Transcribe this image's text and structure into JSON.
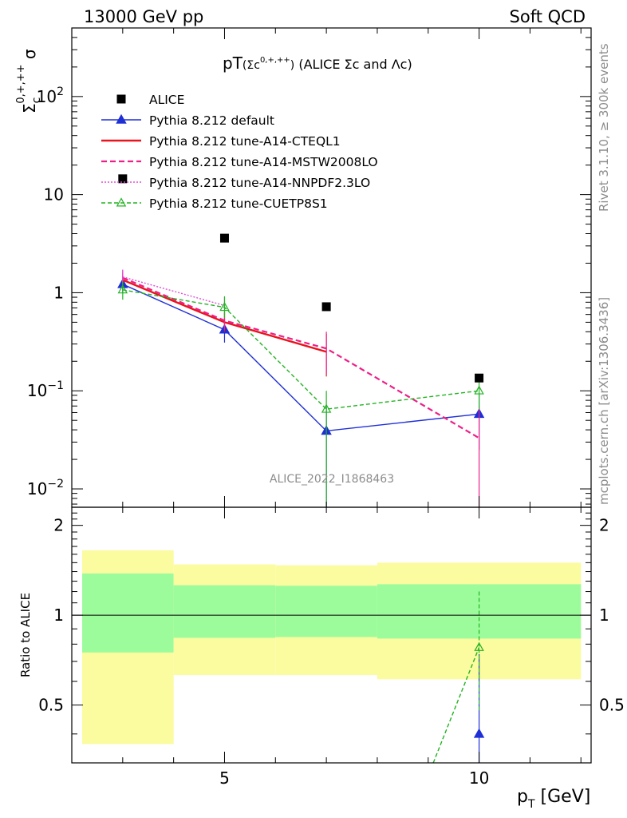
{
  "header": {
    "left": "13000 GeV pp",
    "right": "Soft QCD"
  },
  "side_labels": {
    "rivet": "Rivet 3.1.10, ≥ 300k events",
    "mcplots": "mcplots.cern.ch [arXiv:1306.3436]"
  },
  "plot_title": {
    "main": "pT",
    "paren_open": "(Σc",
    "paren_sup": "0,+,++",
    "paren_close": ")",
    "rest": " (ALICE Σc and Λc)"
  },
  "watermark": "ALICE_2022_I1868463",
  "y_axis_label": {
    "base": "Σ",
    "sub": "c",
    "sup": "0,+,++",
    "tail": " σ"
  },
  "x_axis_label": {
    "p": "p",
    "sub": "T",
    "unit": " [GeV]"
  },
  "ratio_axis_label": "Ratio to ALICE",
  "main_ticks": {
    "y": [
      {
        "v": 0.01,
        "base": "10",
        "exp": "−2"
      },
      {
        "v": 0.1,
        "base": "10",
        "exp": "−1"
      },
      {
        "v": 1,
        "base": "1",
        "exp": ""
      },
      {
        "v": 10,
        "base": "10",
        "exp": ""
      },
      {
        "v": 100,
        "base": "10",
        "exp": "2"
      }
    ]
  },
  "ratio_ticks": {
    "y": [
      {
        "v": 0.5,
        "label": "0.5"
      },
      {
        "v": 1,
        "label": "1"
      },
      {
        "v": 2,
        "label": "2"
      }
    ]
  },
  "x_ticks": [
    {
      "v": 5,
      "label": "5"
    },
    {
      "v": 10,
      "label": "10"
    }
  ],
  "legend": [
    {
      "key": "alice",
      "label": "ALICE"
    },
    {
      "key": "default",
      "label": "Pythia 8.212 default"
    },
    {
      "key": "cteql1",
      "label": "Pythia 8.212 tune-A14-CTEQL1"
    },
    {
      "key": "mstw",
      "label": "Pythia 8.212 tune-A14-MSTW2008LO"
    },
    {
      "key": "nnpdf",
      "label": "Pythia 8.212 tune-A14-NNPDF2.3LO"
    },
    {
      "key": "cuetp",
      "label": "Pythia 8.212 tune-CUETP8S1"
    }
  ],
  "chart_data": {
    "type": "line",
    "xlabel": "pT [GeV]",
    "ylabel": "Σc(0,+,++) σ",
    "x_scale": "linear",
    "y_scale": "log",
    "xlim": [
      2,
      12.2
    ],
    "ylim": [
      0.0065,
      500
    ],
    "ratio_ylim": [
      0.32,
      2.3
    ],
    "grid": false,
    "legend_position": "top-left",
    "reference": {
      "name": "ALICE",
      "color": "#000000",
      "points": [
        {
          "x": 3,
          "y": 14.5
        },
        {
          "x": 5,
          "y": 3.6
        },
        {
          "x": 7,
          "y": 0.72
        },
        {
          "x": 10,
          "y": 0.135
        }
      ]
    },
    "ratio_bands": [
      {
        "x0": 2,
        "x1": 4,
        "yellow": [
          0.37,
          1.65
        ],
        "green": [
          0.75,
          1.38
        ]
      },
      {
        "x0": 4,
        "x1": 6,
        "yellow": [
          0.63,
          1.48
        ],
        "green": [
          0.84,
          1.26
        ]
      },
      {
        "x0": 6,
        "x1": 8,
        "yellow": [
          0.63,
          1.47
        ],
        "green": [
          0.845,
          1.255
        ]
      },
      {
        "x0": 8,
        "x1": 12,
        "yellow": [
          0.61,
          1.5
        ],
        "green": [
          0.835,
          1.27
        ]
      }
    ],
    "series": [
      {
        "name": "Pythia 8.212 default",
        "color": "#1f2fd6",
        "dash": "",
        "marker": "triangle-filled",
        "points": [
          {
            "x": 3,
            "y": 1.22,
            "lo": 1.0,
            "hi": 1.45
          },
          {
            "x": 5,
            "y": 0.42,
            "lo": 0.31,
            "hi": 0.55
          },
          {
            "x": 7,
            "y": 0.039,
            "lo": 0.0065,
            "hi": 0.07
          },
          {
            "x": 10,
            "y": 0.058,
            "lo": 0.025,
            "hi": 0.095
          }
        ],
        "ratio": [
          {
            "x": 10,
            "y": 0.4,
            "lo": 0.32,
            "hi": 0.74
          }
        ]
      },
      {
        "name": "Pythia 8.212 tune-A14-CTEQL1",
        "color": "#e8141e",
        "dash": "",
        "marker": "none",
        "points": [
          {
            "x": 3,
            "y": 1.35,
            "lo": 1.15,
            "hi": 1.6
          },
          {
            "x": 5,
            "y": 0.5,
            "lo": 0.4,
            "hi": 0.62
          },
          {
            "x": 7,
            "y": 0.25,
            "lo": 0.14,
            "hi": 0.38
          }
        ],
        "ratio": []
      },
      {
        "name": "Pythia 8.212 tune-A14-MSTW2008LO",
        "color": "#ee1f87",
        "dash": "7,4",
        "marker": "none",
        "points": [
          {
            "x": 3,
            "y": 1.42,
            "lo": 1.2,
            "hi": 1.7
          },
          {
            "x": 5,
            "y": 0.52,
            "lo": 0.42,
            "hi": 0.65
          },
          {
            "x": 7,
            "y": 0.27,
            "lo": 0.15,
            "hi": 0.4
          },
          {
            "x": 10,
            "y": 0.033,
            "lo": 0.0065,
            "hi": 0.07
          }
        ],
        "ratio": []
      },
      {
        "name": "Pythia 8.212 tune-A14-NNPDF2.3LO",
        "color": "#e24cd7",
        "dash": "2,2",
        "marker": "none",
        "points": [
          {
            "x": 3,
            "y": 1.45,
            "lo": 1.25,
            "hi": 1.72
          },
          {
            "x": 5,
            "y": 0.74,
            "lo": 0.6,
            "hi": 0.9
          }
        ],
        "ratio": []
      },
      {
        "name": "Pythia 8.212 tune-CUETP8S1",
        "color": "#22b422",
        "dash": "5,3",
        "marker": "triangle-open",
        "points": [
          {
            "x": 3,
            "y": 1.07,
            "lo": 0.85,
            "hi": 1.3
          },
          {
            "x": 5,
            "y": 0.71,
            "lo": 0.55,
            "hi": 0.92
          },
          {
            "x": 7,
            "y": 0.065,
            "lo": 0.0065,
            "hi": 0.1
          },
          {
            "x": 10,
            "y": 0.1,
            "lo": 0.065,
            "hi": 0.145
          }
        ],
        "ratio": [
          {
            "x": 9.1,
            "y": 0.32,
            "lo": 0.32,
            "hi": 0.32
          },
          {
            "x": 10,
            "y": 0.78,
            "lo": 0.48,
            "hi": 1.2
          }
        ]
      }
    ]
  }
}
